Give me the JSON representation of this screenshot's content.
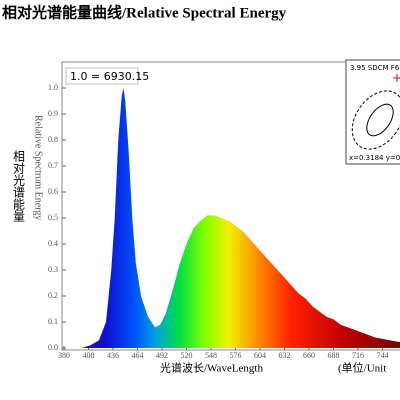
{
  "chart_data": {
    "type": "area",
    "title": "相对光谱能量曲线/Relative Spectral Energy",
    "annotation": "1.0 = 6930.15",
    "ylabel_cn": "相对光谱能量",
    "ylabel_en": "Relative Spectrum Energy",
    "xlabel": "光谱波长/WaveLength",
    "unit_label": "(单位/Unit",
    "inset_title": "3.95 SDCM  F6",
    "inset_coords": "x=0.3184  y=0.",
    "x": [
      380,
      400,
      410,
      420,
      428,
      434,
      438,
      442,
      446,
      448,
      450,
      454,
      458,
      462,
      468,
      476,
      484,
      490,
      496,
      504,
      512,
      520,
      528,
      536,
      544,
      552,
      560,
      568,
      576,
      584,
      592,
      600,
      608,
      616,
      624,
      632,
      640,
      648,
      656,
      664,
      672,
      680,
      688,
      696,
      704,
      712,
      720,
      728,
      736,
      744,
      760,
      780
    ],
    "values": [
      0,
      0,
      0.01,
      0.03,
      0.1,
      0.3,
      0.5,
      0.8,
      0.97,
      1.0,
      0.95,
      0.75,
      0.5,
      0.33,
      0.2,
      0.12,
      0.08,
      0.09,
      0.13,
      0.22,
      0.32,
      0.4,
      0.46,
      0.49,
      0.51,
      0.51,
      0.5,
      0.49,
      0.47,
      0.45,
      0.42,
      0.39,
      0.36,
      0.33,
      0.3,
      0.27,
      0.24,
      0.21,
      0.19,
      0.16,
      0.14,
      0.12,
      0.11,
      0.09,
      0.08,
      0.07,
      0.06,
      0.05,
      0.04,
      0.035,
      0.025,
      0.015
    ],
    "xlim": [
      380,
      780
    ],
    "xticks": [
      380,
      408,
      436,
      464,
      492,
      520,
      548,
      576,
      604,
      632,
      660,
      688,
      716,
      744
    ],
    "ylim": [
      0,
      1
    ],
    "yticks": [
      {
        "value": 0,
        "label": "0.0"
      },
      0.1,
      0.2,
      0.3,
      0.4,
      0.5,
      0.6,
      0.7,
      0.8,
      0.9,
      {
        "value": 1,
        "label": "1.0"
      }
    ]
  }
}
